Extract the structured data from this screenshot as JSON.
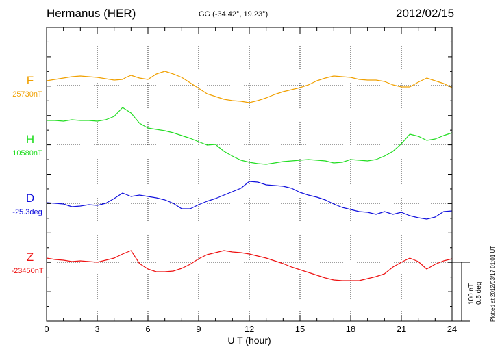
{
  "header": {
    "station": "Hermanus (HER)",
    "coords": "GG (-34.42°,  19.23°)",
    "date": "2012/02/15"
  },
  "footer_note": "Plotted at 2012/03/17 01:01  UT",
  "scale": {
    "nt": "100 nT",
    "deg": "0.5 deg"
  },
  "chart_data": {
    "type": "line",
    "xlabel": "U T (hour)",
    "xlim": [
      0,
      24
    ],
    "xticks": [
      "0",
      "3",
      "6",
      "9",
      "12",
      "15",
      "18",
      "21",
      "24"
    ],
    "grid": true,
    "series": [
      {
        "name": "F",
        "baseline_label": "25730nT",
        "color": "#f0a000",
        "points": [
          [
            0,
            118
          ],
          [
            0.5,
            116
          ],
          [
            1,
            114
          ],
          [
            1.5,
            112
          ],
          [
            2,
            111
          ],
          [
            2.5,
            112
          ],
          [
            3,
            113
          ],
          [
            3.5,
            115
          ],
          [
            4,
            117
          ],
          [
            4.5,
            116
          ],
          [
            4.7,
            113
          ],
          [
            5,
            110
          ],
          [
            5.5,
            114
          ],
          [
            6,
            116
          ],
          [
            6.5,
            108
          ],
          [
            7,
            104
          ],
          [
            7.5,
            108
          ],
          [
            8,
            113
          ],
          [
            8.5,
            121
          ],
          [
            9,
            129
          ],
          [
            9.5,
            137
          ],
          [
            10,
            141
          ],
          [
            10.5,
            145
          ],
          [
            11,
            147
          ],
          [
            11.5,
            148
          ],
          [
            12,
            150
          ],
          [
            12.5,
            147
          ],
          [
            13,
            143
          ],
          [
            13.5,
            138
          ],
          [
            14,
            134
          ],
          [
            14.5,
            131
          ],
          [
            15,
            128
          ],
          [
            15.5,
            124
          ],
          [
            16,
            118
          ],
          [
            16.5,
            114
          ],
          [
            17,
            111
          ],
          [
            17.5,
            112
          ],
          [
            18,
            113
          ],
          [
            18.5,
            116
          ],
          [
            19,
            117
          ],
          [
            19.5,
            117
          ],
          [
            20,
            119
          ],
          [
            20.5,
            124
          ],
          [
            21,
            127
          ],
          [
            21.5,
            127
          ],
          [
            22,
            120
          ],
          [
            22.5,
            114
          ],
          [
            23,
            118
          ],
          [
            23.5,
            122
          ],
          [
            24,
            128
          ]
        ]
      },
      {
        "name": "H",
        "baseline_label": "10580nT",
        "color": "#22dd22",
        "points": [
          [
            0,
            176
          ],
          [
            0.5,
            176
          ],
          [
            1,
            177
          ],
          [
            1.5,
            175
          ],
          [
            2,
            176
          ],
          [
            2.5,
            176
          ],
          [
            3,
            177
          ],
          [
            3.5,
            175
          ],
          [
            4,
            170
          ],
          [
            4.5,
            157
          ],
          [
            5,
            165
          ],
          [
            5.5,
            180
          ],
          [
            6,
            187
          ],
          [
            6.5,
            189
          ],
          [
            7,
            191
          ],
          [
            7.5,
            194
          ],
          [
            8,
            198
          ],
          [
            8.5,
            202
          ],
          [
            9,
            207
          ],
          [
            9.5,
            212
          ],
          [
            10,
            211
          ],
          [
            10.5,
            221
          ],
          [
            11,
            228
          ],
          [
            11.5,
            234
          ],
          [
            12,
            237
          ],
          [
            12.5,
            239
          ],
          [
            13,
            240
          ],
          [
            13.5,
            238
          ],
          [
            14,
            236
          ],
          [
            14.5,
            235
          ],
          [
            15,
            234
          ],
          [
            15.5,
            233
          ],
          [
            16,
            234
          ],
          [
            16.5,
            235
          ],
          [
            17,
            238
          ],
          [
            17.5,
            237
          ],
          [
            18,
            233
          ],
          [
            18.5,
            234
          ],
          [
            19,
            235
          ],
          [
            19.5,
            233
          ],
          [
            20,
            228
          ],
          [
            20.5,
            221
          ],
          [
            21,
            210
          ],
          [
            21.5,
            196
          ],
          [
            22,
            199
          ],
          [
            22.5,
            205
          ],
          [
            23,
            203
          ],
          [
            23.5,
            198
          ],
          [
            24,
            194
          ]
        ]
      },
      {
        "name": "D",
        "baseline_label": "-25.3deg",
        "color": "#1010dd",
        "points": [
          [
            0,
            296
          ],
          [
            0.5,
            297
          ],
          [
            1,
            298
          ],
          [
            1.5,
            302
          ],
          [
            2,
            301
          ],
          [
            2.5,
            299
          ],
          [
            3,
            300
          ],
          [
            3.5,
            297
          ],
          [
            4,
            290
          ],
          [
            4.5,
            282
          ],
          [
            5,
            287
          ],
          [
            5.5,
            285
          ],
          [
            6,
            287
          ],
          [
            6.5,
            289
          ],
          [
            7,
            292
          ],
          [
            7.5,
            297
          ],
          [
            8,
            305
          ],
          [
            8.5,
            305
          ],
          [
            9,
            299
          ],
          [
            9.5,
            294
          ],
          [
            10,
            290
          ],
          [
            10.5,
            285
          ],
          [
            11,
            280
          ],
          [
            11.5,
            275
          ],
          [
            12,
            265
          ],
          [
            12.5,
            266
          ],
          [
            13,
            270
          ],
          [
            13.5,
            271
          ],
          [
            14,
            272
          ],
          [
            14.5,
            275
          ],
          [
            15,
            281
          ],
          [
            15.5,
            285
          ],
          [
            16,
            288
          ],
          [
            16.5,
            292
          ],
          [
            17,
            298
          ],
          [
            17.5,
            303
          ],
          [
            18,
            306
          ],
          [
            18.5,
            309
          ],
          [
            19,
            310
          ],
          [
            19.5,
            313
          ],
          [
            20,
            309
          ],
          [
            20.5,
            313
          ],
          [
            21,
            310
          ],
          [
            21.5,
            315
          ],
          [
            22,
            318
          ],
          [
            22.5,
            320
          ],
          [
            23,
            317
          ],
          [
            23.5,
            309
          ],
          [
            24,
            308
          ]
        ]
      },
      {
        "name": "Z",
        "baseline_label": "-23450nT",
        "color": "#ee1111",
        "points": [
          [
            0,
            377
          ],
          [
            0.5,
            379
          ],
          [
            1,
            380
          ],
          [
            1.5,
            382
          ],
          [
            2,
            381
          ],
          [
            2.5,
            382
          ],
          [
            3,
            383
          ],
          [
            3.5,
            380
          ],
          [
            4,
            377
          ],
          [
            4.5,
            371
          ],
          [
            5,
            366
          ],
          [
            5.5,
            385
          ],
          [
            6,
            393
          ],
          [
            6.5,
            397
          ],
          [
            7,
            397
          ],
          [
            7.5,
            396
          ],
          [
            8,
            392
          ],
          [
            8.5,
            386
          ],
          [
            9,
            378
          ],
          [
            9.5,
            372
          ],
          [
            10,
            369
          ],
          [
            10.5,
            366
          ],
          [
            11,
            368
          ],
          [
            11.5,
            369
          ],
          [
            12,
            371
          ],
          [
            12.5,
            374
          ],
          [
            13,
            377
          ],
          [
            13.5,
            381
          ],
          [
            14,
            385
          ],
          [
            14.5,
            390
          ],
          [
            15,
            394
          ],
          [
            15.5,
            398
          ],
          [
            16,
            402
          ],
          [
            16.5,
            406
          ],
          [
            17,
            409
          ],
          [
            17.5,
            410
          ],
          [
            18,
            410
          ],
          [
            18.5,
            410
          ],
          [
            19,
            407
          ],
          [
            19.5,
            404
          ],
          [
            20,
            400
          ],
          [
            20.5,
            390
          ],
          [
            21,
            383
          ],
          [
            21.5,
            377
          ],
          [
            22,
            382
          ],
          [
            22.5,
            393
          ],
          [
            23,
            386
          ],
          [
            23.5,
            381
          ],
          [
            24,
            378
          ]
        ]
      }
    ]
  }
}
